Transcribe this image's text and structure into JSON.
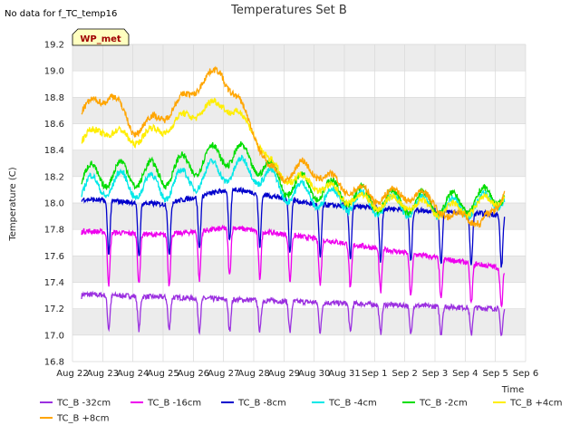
{
  "header": {
    "nodata_text": "No data for f_TC_temp16",
    "station_badge": "WP_met"
  },
  "colors": {
    "band": "#ececec",
    "grid": "#d8d8d8",
    "badge_fill": "#ffffc0"
  },
  "chart_data": {
    "type": "line",
    "title": "Temperatures Set B",
    "xlabel": "Time",
    "ylabel": "Temperature (C)",
    "ylim": [
      16.8,
      19.2
    ],
    "y_ticks": [
      16.8,
      17.0,
      17.2,
      17.4,
      17.6,
      17.8,
      18.0,
      18.2,
      18.4,
      18.6,
      18.8,
      19.0,
      19.2
    ],
    "x_range": [
      0,
      15
    ],
    "x_tick_labels": [
      "Aug 22",
      "Aug 23",
      "Aug 24",
      "Aug 25",
      "Aug 26",
      "Aug 27",
      "Aug 28",
      "Aug 29",
      "Aug 30",
      "Aug 31",
      "Sep 1",
      "Sep 2",
      "Sep 3",
      "Sep 4",
      "Sep 5",
      "Sep 6"
    ],
    "grid": true,
    "legend_position": "bottom",
    "series": [
      {
        "name": "TC_B -32cm",
        "color": "#9b30e0",
        "mean_x": [
          0.3,
          14.3
        ],
        "mean_y": [
          17.27,
          17.17
        ],
        "amp": [
          0.26,
          0.2
        ]
      },
      {
        "name": "TC_B -16cm",
        "color": "#ee00ee",
        "mean_x": [
          0.3,
          3,
          5.3,
          8,
          14.3
        ],
        "mean_y": [
          17.73,
          17.7,
          17.76,
          17.68,
          17.46
        ],
        "amp": [
          0.4,
          0.3
        ]
      },
      {
        "name": "TC_B -8cm",
        "color": "#0000cc",
        "mean_x": [
          0.3,
          3,
          5.3,
          8,
          14.3
        ],
        "mean_y": [
          17.97,
          17.93,
          18.05,
          17.93,
          17.85
        ],
        "amp": [
          0.4,
          0.4
        ]
      },
      {
        "name": "TC_B -4cm",
        "color": "#00e8e8",
        "mean_x": [
          0.3,
          1,
          3,
          5,
          6,
          7,
          8,
          9,
          10,
          12,
          13,
          14.3
        ],
        "mean_y": [
          18.08,
          18.15,
          18.12,
          18.25,
          18.25,
          18.1,
          18.05,
          18.02,
          17.99,
          17.97,
          17.96,
          18.05
        ],
        "amp": [
          0.1,
          0.07
        ]
      },
      {
        "name": "TC_B -2cm",
        "color": "#00dd00",
        "mean_x": [
          0.3,
          1,
          3,
          5,
          6,
          7,
          8,
          9,
          10,
          12,
          13,
          14.3
        ],
        "mean_y": [
          18.18,
          18.22,
          18.22,
          18.38,
          18.33,
          18.15,
          18.12,
          18.07,
          18.02,
          18.0,
          18.0,
          18.08
        ],
        "amp": [
          0.1,
          0.08
        ]
      },
      {
        "name": "TC_B +4cm",
        "color": "#ffee00",
        "mean_x": [
          0.3,
          1,
          2,
          3,
          4,
          5,
          6,
          6.5,
          7,
          8,
          9,
          10,
          11,
          12,
          13,
          14.3
        ],
        "mean_y": [
          18.48,
          18.56,
          18.48,
          18.56,
          18.68,
          18.76,
          18.55,
          18.3,
          18.2,
          18.15,
          18.05,
          18.0,
          18.0,
          17.95,
          17.95,
          18.05
        ],
        "amp": [
          0.04,
          0.05
        ]
      },
      {
        "name": "TC_B +8cm",
        "color": "#ffa500",
        "mean_x": [
          0.3,
          1.3,
          2,
          3,
          3.5,
          4.3,
          4.9,
          5.6,
          6,
          6.5,
          7,
          7.6,
          8.2,
          9,
          10,
          11,
          12,
          12.5,
          13,
          13.5,
          14.3
        ],
        "mean_y": [
          18.7,
          18.83,
          18.55,
          18.66,
          18.75,
          18.92,
          19.0,
          18.72,
          18.55,
          18.25,
          18.2,
          18.28,
          18.22,
          18.12,
          18.05,
          18.07,
          18.02,
          17.85,
          17.95,
          17.8,
          18.1
        ],
        "amp": [
          0.04,
          0.05
        ]
      }
    ]
  }
}
